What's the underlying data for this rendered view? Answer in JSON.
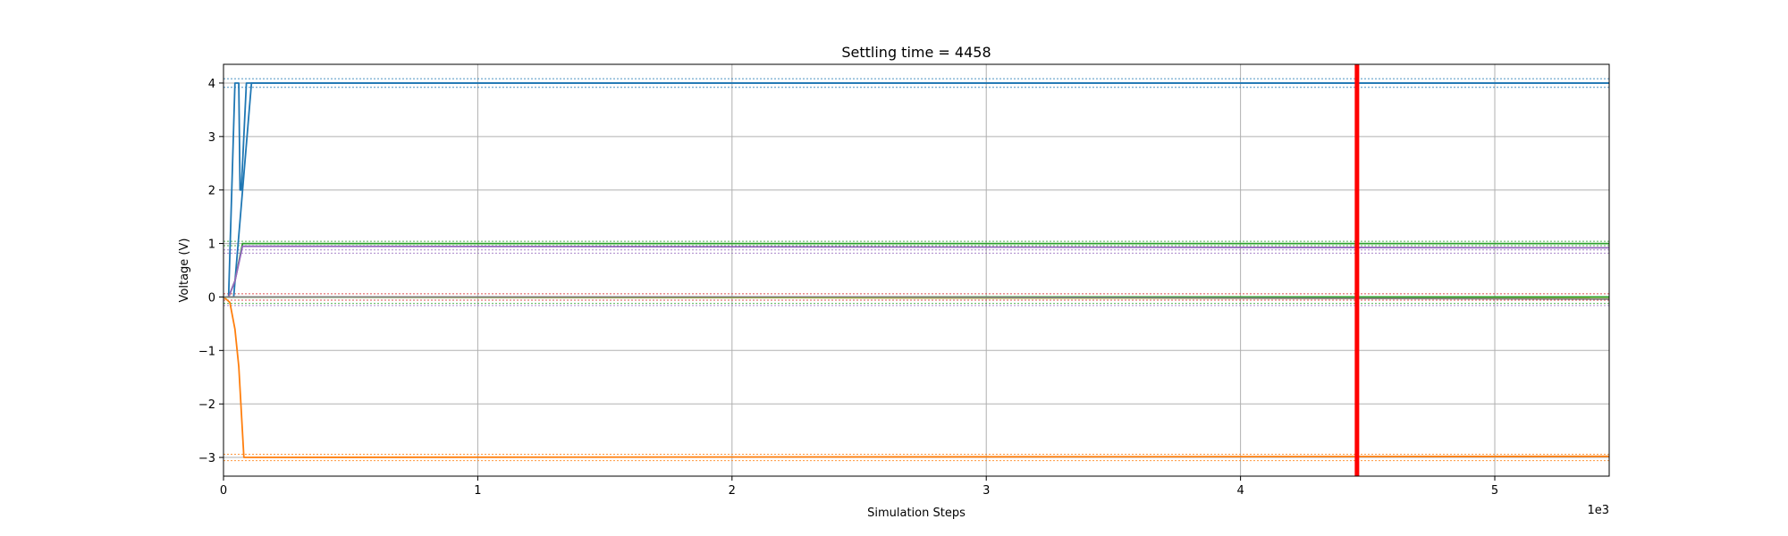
{
  "chart_data": {
    "type": "line",
    "title": "Settling time = 4458",
    "xlabel": "Simulation Steps",
    "ylabel": "Voltage (V)",
    "x_offset_text": "1e3",
    "xlim": [
      0,
      5450
    ],
    "ylim": [
      -3.35,
      4.35
    ],
    "x_ticks": [
      0,
      1000,
      2000,
      3000,
      4000,
      5000
    ],
    "x_tick_labels": [
      "0",
      "1",
      "2",
      "3",
      "4",
      "5"
    ],
    "y_ticks": [
      -3,
      -2,
      -1,
      0,
      1,
      2,
      3,
      4
    ],
    "y_tick_labels": [
      "−3",
      "−2",
      "−1",
      "0",
      "1",
      "2",
      "3",
      "4"
    ],
    "grid": true,
    "settling_time": 4458,
    "marker_color": "#ff0000",
    "series": [
      {
        "color": "#1f77b4",
        "x": [
          0,
          20,
          45,
          60,
          65,
          70,
          90,
          200,
          5450
        ],
        "y": [
          0,
          0,
          4,
          4,
          2,
          2,
          4,
          4,
          4
        ]
      },
      {
        "color": "#1f77b4",
        "x": [
          0,
          40,
          110,
          5450
        ],
        "y": [
          0,
          0,
          4,
          4
        ]
      },
      {
        "color": "#ff7f0e",
        "x": [
          0,
          25,
          45,
          60,
          80,
          5450
        ],
        "y": [
          0,
          -0.1,
          -0.6,
          -1.3,
          -3.0,
          -2.98
        ]
      },
      {
        "color": "#2ca02c",
        "x": [
          0,
          20,
          45,
          75,
          5450
        ],
        "y": [
          0,
          0,
          0.3,
          1.0,
          1.0
        ]
      },
      {
        "color": "#9467bd",
        "x": [
          0,
          20,
          45,
          75,
          5450
        ],
        "y": [
          0,
          0,
          0.3,
          0.95,
          0.92
        ]
      },
      {
        "color": "#8c564b",
        "x": [
          0,
          5450
        ],
        "y": [
          0,
          -0.03
        ]
      },
      {
        "color": "#bcbd22",
        "x": [
          0,
          5450
        ],
        "y": [
          0,
          -0.03
        ]
      },
      {
        "color": "#2ca02c",
        "x": [
          0,
          5450
        ],
        "y": [
          0,
          0.0
        ]
      },
      {
        "color": "#7f7f7f",
        "x": [
          0,
          2500,
          5450
        ],
        "y": [
          0,
          0,
          -0.04
        ]
      }
    ],
    "tolerance_bands": [
      {
        "color": "#1f77b4",
        "values": [
          4.08,
          3.92
        ]
      },
      {
        "color": "#ff7f0e",
        "values": [
          -2.94,
          -3.06
        ]
      },
      {
        "color": "#2ca02c",
        "values": [
          1.04,
          0.96
        ]
      },
      {
        "color": "#9467bd",
        "values": [
          0.88,
          0.82
        ]
      },
      {
        "color": "#9467bd",
        "values": [
          -0.16
        ]
      },
      {
        "color": "#2ca02c",
        "values": [
          -0.12
        ]
      },
      {
        "color": "#d62728",
        "values": [
          0.06,
          -0.06
        ]
      }
    ]
  }
}
